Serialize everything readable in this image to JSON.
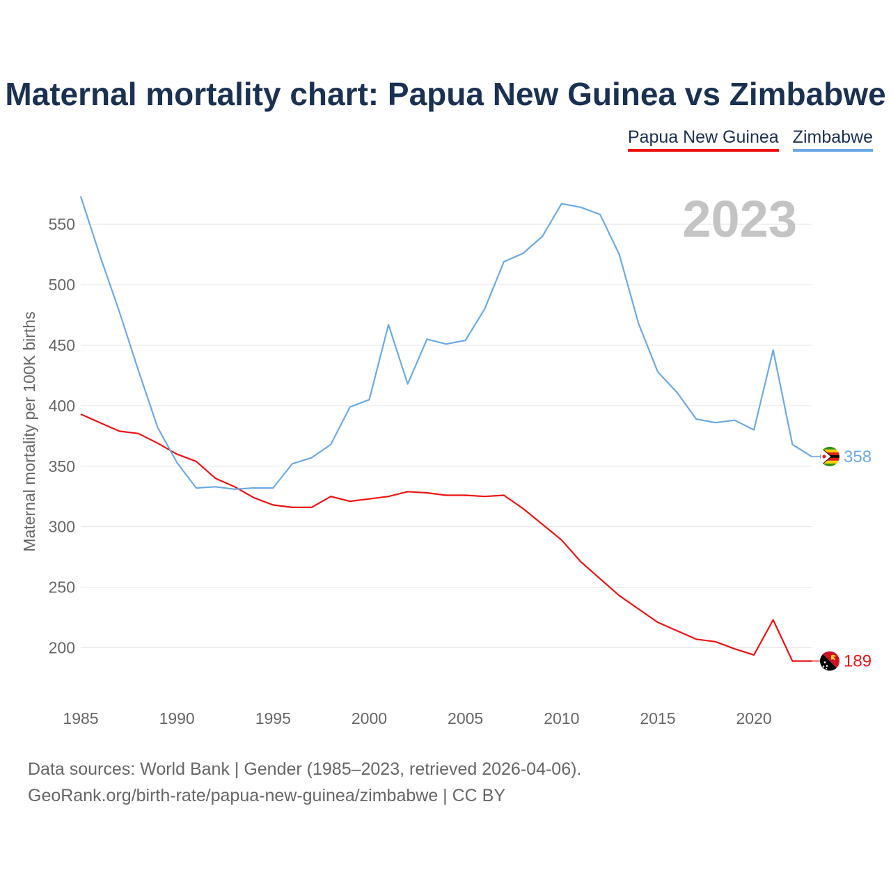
{
  "header": {
    "title": "Maternal mortality chart: Papua New Guinea vs Zimbabwe"
  },
  "legend": {
    "items": [
      {
        "label": "Papua New Guinea",
        "color": "#ee1111"
      },
      {
        "label": "Zimbabwe",
        "color": "#6aaae4"
      }
    ]
  },
  "footer": {
    "line1": "Data sources: World Bank | Gender (1985–2023, retrieved 2026-04-06).",
    "line2": "GeoRank.org/birth-rate/papua-new-guinea/zimbabwe | CC BY"
  },
  "chart_data": {
    "type": "line",
    "title": "Maternal mortality chart: Papua New Guinea vs Zimbabwe",
    "year_label": "2023",
    "xlabel": "",
    "ylabel": "Maternal mortality per 100K births",
    "xlim": [
      1985,
      2023
    ],
    "ylim": [
      160,
      580
    ],
    "x_ticks": [
      1985,
      1990,
      1995,
      2000,
      2005,
      2010,
      2015,
      2020
    ],
    "y_ticks": [
      200,
      250,
      300,
      350,
      400,
      450,
      500,
      550
    ],
    "grid": true,
    "x": [
      1985,
      1986,
      1987,
      1988,
      1989,
      1990,
      1991,
      1992,
      1993,
      1994,
      1995,
      1996,
      1997,
      1998,
      1999,
      2000,
      2001,
      2002,
      2003,
      2004,
      2005,
      2006,
      2007,
      2008,
      2009,
      2010,
      2011,
      2012,
      2013,
      2014,
      2015,
      2016,
      2017,
      2018,
      2019,
      2020,
      2021,
      2022,
      2023
    ],
    "series": [
      {
        "name": "Papua New Guinea",
        "color": "#ee1111",
        "end_label": "189",
        "end_icon": "papua-new-guinea-flag-icon",
        "values": [
          393,
          386,
          379,
          377,
          369,
          360,
          354,
          340,
          333,
          324,
          318,
          316,
          316,
          325,
          321,
          323,
          325,
          329,
          328,
          326,
          326,
          325,
          326,
          315,
          302,
          289,
          271,
          257,
          243,
          232,
          221,
          214,
          207,
          205,
          199,
          194,
          223,
          189,
          189
        ]
      },
      {
        "name": "Zimbabwe",
        "color": "#6aaae4",
        "end_label": "358",
        "end_icon": "zimbabwe-flag-icon",
        "values": [
          573,
          524,
          478,
          429,
          382,
          353,
          332,
          333,
          331,
          332,
          332,
          352,
          357,
          368,
          399,
          405,
          467,
          418,
          455,
          451,
          454,
          480,
          519,
          526,
          540,
          567,
          564,
          558,
          525,
          468,
          428,
          411,
          389,
          386,
          388,
          380,
          446,
          368,
          358
        ]
      }
    ]
  }
}
